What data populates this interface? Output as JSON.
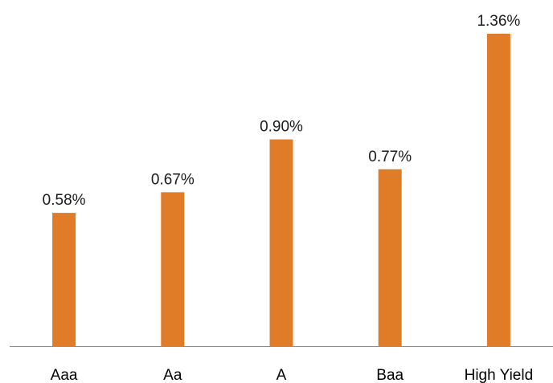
{
  "chart_data": {
    "type": "bar",
    "categories": [
      "Aaa",
      "Aa",
      "A",
      "Baa",
      "High Yield"
    ],
    "values": [
      0.58,
      0.67,
      0.9,
      0.77,
      1.36
    ],
    "data_labels": [
      "0.58%",
      "0.67%",
      "0.90%",
      "0.77%",
      "1.36%"
    ],
    "title": "",
    "xlabel": "",
    "ylabel": "",
    "ylim": [
      0,
      1.36
    ],
    "grid": false,
    "legend": "none",
    "colors": {
      "bar": "#E07B27",
      "axis": "#8c8c8c",
      "text": "#000000"
    }
  }
}
